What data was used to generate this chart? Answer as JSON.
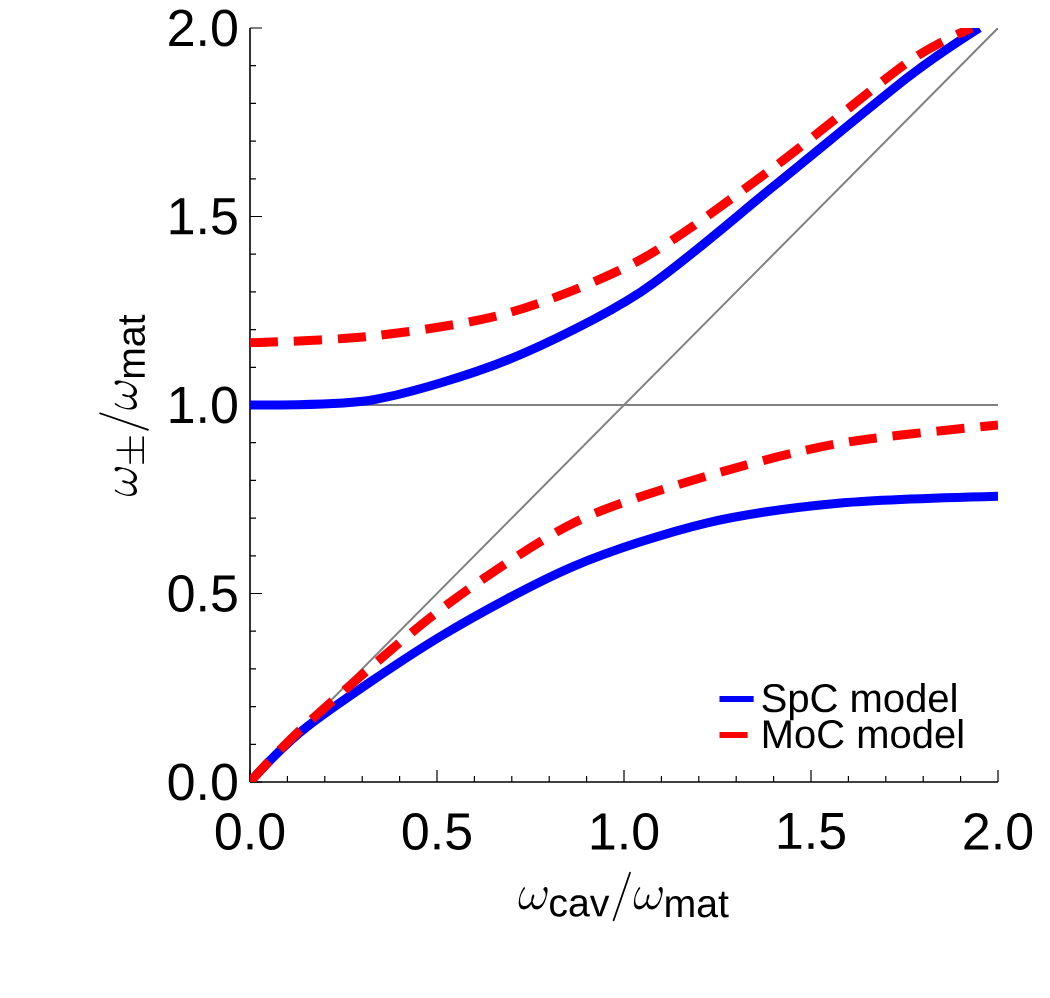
{
  "chart_data": {
    "type": "line",
    "xlabel": "\\omega_{\\rm cav}/\\omega_{\\rm mat}",
    "ylabel": "\\omega_\\pm/\\omega_{\\rm mat}",
    "xlim": [
      0,
      2
    ],
    "ylim": [
      0,
      2
    ],
    "xticks": [
      {
        "value": 0,
        "label": "0.0"
      },
      0.5,
      {
        "value": 1,
        "label": "1.0"
      },
      1.5,
      {
        "value": 2,
        "label": "2.0"
      }
    ],
    "yticks": [
      {
        "value": 0,
        "label": "0.0"
      },
      0.5,
      {
        "value": 1,
        "label": "1.0"
      },
      1.5,
      {
        "value": 2,
        "label": "2.0"
      }
    ],
    "grid": false,
    "legend": "bottom right",
    "marker": "none",
    "ref_lines": [
      {
        "axis": "y",
        "value": 1,
        "color": "#808080"
      }
    ],
    "series": [
      {
        "name": "SpC model",
        "color": "#0000ff",
        "line_style": "solid",
        "x": [
          0,
          0.33,
          0.69,
          1.045,
          1.4,
          1.76,
          1.95
        ],
        "values": [
          1.0,
          1.014,
          1.12,
          1.3,
          1.58,
          1.87,
          2.0
        ]
      },
      {
        "color": "#0000ff",
        "line_style": "solid",
        "x": [
          0,
          0.153,
          0.509,
          0.865,
          1.22,
          1.58,
          2.0
        ],
        "values": [
          0,
          0.147,
          0.386,
          0.572,
          0.687,
          0.74,
          0.758
        ]
      },
      {
        "name": "MoC model",
        "color": "#ff0000",
        "line_style": "dashed",
        "x": [
          0,
          0.33,
          0.69,
          1.045,
          1.4,
          1.76,
          1.93
        ],
        "values": [
          1.165,
          1.183,
          1.244,
          1.386,
          1.63,
          1.91,
          2.0
        ]
      },
      {
        "color": "#ff0000",
        "line_style": "dashed",
        "x": [
          0,
          0.153,
          0.509,
          0.865,
          1.22,
          1.58,
          2.0
        ],
        "values": [
          0,
          0.155,
          0.457,
          0.687,
          0.811,
          0.899,
          0.947
        ]
      },
      {
        "color": "#808080",
        "line_style": "solid",
        "x": [
          0,
          2
        ],
        "values": [
          0,
          2
        ]
      }
    ]
  }
}
